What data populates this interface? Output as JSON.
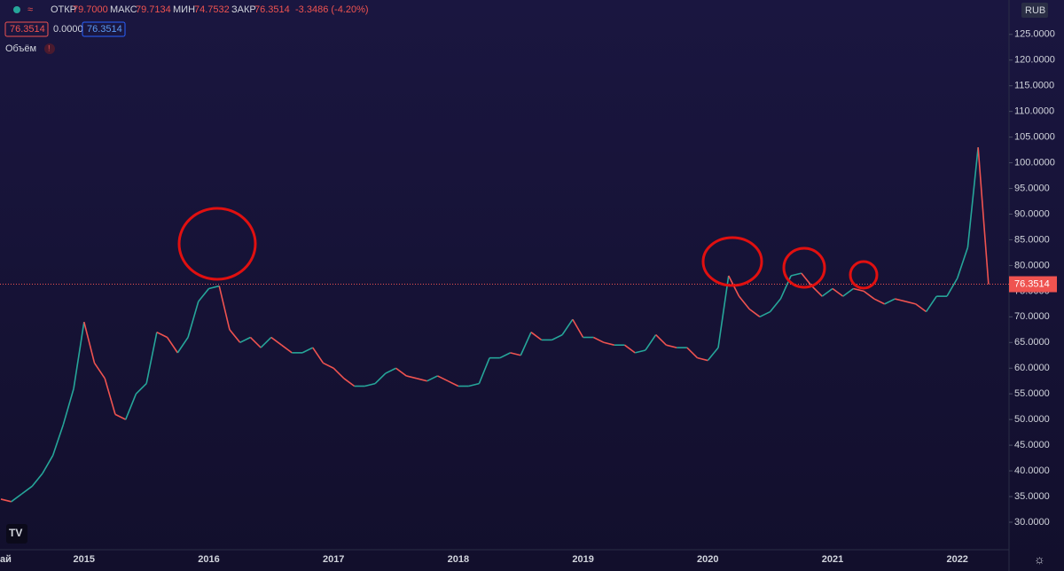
{
  "header": {
    "open_label": "ОТКР",
    "open": "79.7000",
    "high_label": "МАКС",
    "high": "79.7134",
    "low_label": "МИН",
    "low": "74.7532",
    "close_label": "ЗАКР",
    "close": "76.3514",
    "change": "-3.3486 (-4.20%)",
    "badge_1": "76.3514",
    "badge_2": "0.0000",
    "badge_3": "76.3514",
    "volume_label": "Объём",
    "currency": "RUB"
  },
  "chart_data": {
    "type": "line",
    "categories": [
      "ай",
      null,
      null,
      null,
      null,
      null,
      null,
      null,
      "2015",
      null,
      null,
      null,
      null,
      null,
      null,
      null,
      null,
      null,
      null,
      null,
      "2016",
      null,
      null,
      null,
      null,
      null,
      null,
      null,
      null,
      null,
      null,
      null,
      "2017",
      null,
      null,
      null,
      null,
      null,
      null,
      null,
      null,
      null,
      null,
      null,
      "2018",
      null,
      null,
      null,
      null,
      null,
      null,
      null,
      null,
      null,
      null,
      null,
      "2019",
      null,
      null,
      null,
      null,
      null,
      null,
      null,
      null,
      null,
      null,
      null,
      "2020",
      null,
      null,
      null,
      null,
      null,
      null,
      null,
      null,
      null,
      null,
      null,
      "2021",
      null,
      null,
      null,
      null,
      null,
      null,
      null,
      null,
      null,
      null,
      null,
      "2022",
      null,
      null,
      null
    ],
    "values": [
      34.5,
      34,
      35.5,
      37,
      39.5,
      43,
      49,
      56,
      69,
      61,
      58,
      51,
      50,
      55,
      57,
      67,
      66,
      63,
      66,
      73,
      75.5,
      76,
      67.5,
      65,
      66,
      64,
      66,
      64.5,
      63,
      63,
      64,
      61,
      60,
      58,
      56.5,
      56.5,
      57,
      59,
      60,
      58.5,
      58,
      57.5,
      58.5,
      57.5,
      56.5,
      56.5,
      57,
      62,
      62,
      63,
      62.5,
      67,
      65.5,
      65.5,
      66.5,
      69.5,
      66,
      66,
      65,
      64.5,
      64.5,
      63,
      63.5,
      66.5,
      64.5,
      64,
      64,
      62,
      61.5,
      64,
      78,
      74,
      71.5,
      70,
      71,
      73.5,
      78,
      78.5,
      76,
      74,
      75.5,
      74,
      75.5,
      75,
      73.5,
      72.5,
      73.5,
      73,
      72.5,
      71,
      74,
      74,
      77.5,
      83.5,
      103,
      76.3514
    ],
    "up_color": "#26a69a",
    "down_color": "#ef5350",
    "last_value": 76.3514,
    "ylim": [
      20.5,
      131.7
    ],
    "yticks": [
      {
        "value": 30,
        "label": "30.0000"
      },
      {
        "value": 35,
        "label": "35.0000"
      },
      {
        "value": 40,
        "label": "40.0000"
      },
      {
        "value": 45,
        "label": "45.0000"
      },
      {
        "value": 50,
        "label": "50.0000"
      },
      {
        "value": 55,
        "label": "55.0000"
      },
      {
        "value": 60,
        "label": "60.0000"
      },
      {
        "value": 65,
        "label": "65.0000"
      },
      {
        "value": 70,
        "label": "70.0000"
      },
      {
        "value": 75,
        "label": "75.0000"
      },
      {
        "value": 80,
        "label": "80.0000"
      },
      {
        "value": 85,
        "label": "85.0000"
      },
      {
        "value": 90,
        "label": "90.0000"
      },
      {
        "value": 95,
        "label": "95.0000"
      },
      {
        "value": 100,
        "label": "100.0000"
      },
      {
        "value": 105,
        "label": "105.0000"
      },
      {
        "value": 110,
        "label": "110.0000"
      },
      {
        "value": 115,
        "label": "115.0000"
      },
      {
        "value": 120,
        "label": "120.0000"
      },
      {
        "value": 125,
        "label": "125.0000"
      }
    ]
  }
}
